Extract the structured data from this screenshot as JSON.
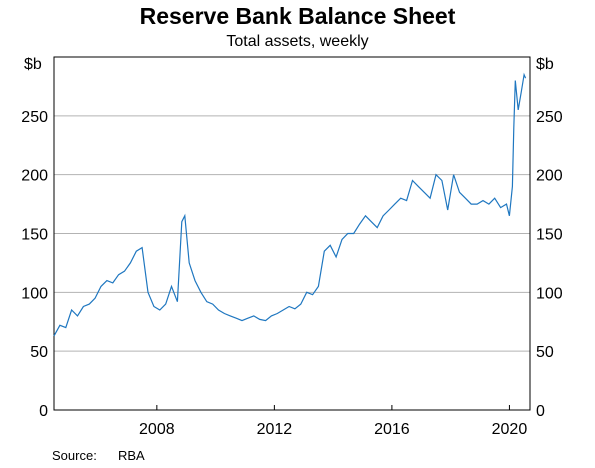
{
  "chart_data": {
    "type": "line",
    "title": "Reserve Bank Balance Sheet",
    "subtitle": "Total assets, weekly",
    "ylabel_left": "$b",
    "ylabel_right": "$b",
    "xlabel": "",
    "ylim": [
      0,
      300
    ],
    "yticks": [
      0,
      50,
      100,
      150,
      200,
      250
    ],
    "xlim": [
      2004.5,
      2020.7
    ],
    "xticks": [
      2008,
      2012,
      2016,
      2020
    ],
    "grid": true,
    "color": "#1f77c0",
    "series": [
      {
        "x": [
          2004.5,
          2004.7,
          2004.9,
          2005.1,
          2005.3,
          2005.5,
          2005.7,
          2005.9,
          2006.1,
          2006.3,
          2006.5,
          2006.7,
          2006.9,
          2007.1,
          2007.3,
          2007.5,
          2007.7,
          2007.9,
          2008.1,
          2008.3,
          2008.5,
          2008.7,
          2008.85,
          2008.95,
          2009.1,
          2009.3,
          2009.5,
          2009.7,
          2009.9,
          2010.1,
          2010.3,
          2010.5,
          2010.7,
          2010.9,
          2011.1,
          2011.3,
          2011.5,
          2011.7,
          2011.9,
          2012.1,
          2012.3,
          2012.5,
          2012.7,
          2012.9,
          2013.1,
          2013.3,
          2013.5,
          2013.7,
          2013.9,
          2014.1,
          2014.3,
          2014.5,
          2014.7,
          2014.9,
          2015.1,
          2015.3,
          2015.5,
          2015.7,
          2015.9,
          2016.1,
          2016.3,
          2016.5,
          2016.7,
          2016.9,
          2017.1,
          2017.3,
          2017.5,
          2017.7,
          2017.9,
          2018.1,
          2018.3,
          2018.5,
          2018.7,
          2018.9,
          2019.1,
          2019.3,
          2019.5,
          2019.7,
          2019.9,
          2020.0,
          2020.1,
          2020.15,
          2020.2,
          2020.3,
          2020.4,
          2020.5,
          2020.55
        ],
        "values": [
          63,
          72,
          70,
          85,
          80,
          88,
          90,
          95,
          105,
          110,
          108,
          115,
          118,
          125,
          135,
          138,
          100,
          88,
          85,
          90,
          105,
          92,
          160,
          165,
          125,
          110,
          100,
          92,
          90,
          85,
          82,
          80,
          78,
          76,
          78,
          80,
          77,
          76,
          80,
          82,
          85,
          88,
          86,
          90,
          100,
          98,
          105,
          135,
          140,
          130,
          145,
          150,
          150,
          158,
          165,
          160,
          155,
          165,
          170,
          175,
          180,
          178,
          195,
          190,
          185,
          180,
          200,
          195,
          170,
          200,
          185,
          180,
          175,
          175,
          178,
          175,
          180,
          172,
          175,
          165,
          190,
          240,
          280,
          255,
          270,
          285,
          282
        ]
      }
    ],
    "source_label": "Source:",
    "source_value": "RBA"
  }
}
